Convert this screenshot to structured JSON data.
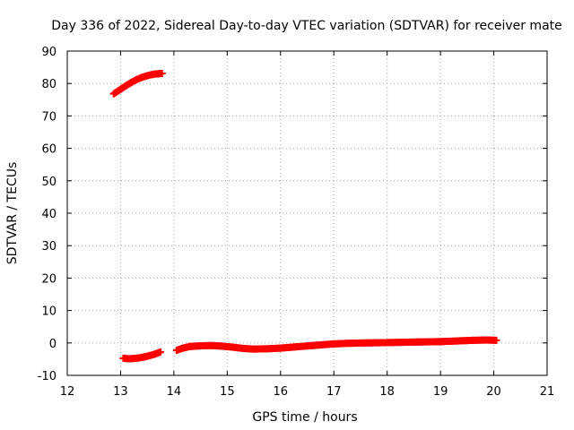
{
  "chart_data": {
    "type": "scatter",
    "title": "Day 336 of 2022, Sidereal Day-to-day VTEC variation (SDTVAR) for receiver mate",
    "xlabel": "GPS time / hours",
    "ylabel": "SDTVAR / TECUs",
    "xlim": [
      12,
      21
    ],
    "ylim": [
      -10,
      90
    ],
    "x_ticks": [
      "12",
      "13",
      "14",
      "15",
      "16",
      "17",
      "18",
      "19",
      "20",
      "21"
    ],
    "y_ticks": [
      "-10",
      "0",
      "10",
      "20",
      "30",
      "40",
      "50",
      "60",
      "70",
      "80",
      "90"
    ],
    "grid": true,
    "marker": "+",
    "series": [
      {
        "color": "#ff0000",
        "segments": [
          {
            "x": [
              12.87,
              13.0,
              13.1,
              13.2,
              13.3,
              13.4,
              13.5,
              13.6,
              13.7,
              13.78
            ],
            "y": [
              76.8,
              78.2,
              79.3,
              80.3,
              81.2,
              81.9,
              82.4,
              82.8,
              83.0,
              83.1
            ]
          },
          {
            "x": [
              13.05,
              13.15,
              13.25,
              13.35,
              13.45,
              13.55,
              13.65,
              13.75
            ],
            "y": [
              -4.7,
              -4.9,
              -4.8,
              -4.6,
              -4.3,
              -3.9,
              -3.4,
              -2.8
            ]
          },
          {
            "x": [
              14.05,
              14.15,
              14.3,
              14.5,
              14.7,
              14.9,
              15.1,
              15.3,
              15.5,
              15.75,
              16.0,
              16.3,
              16.6,
              17.0,
              17.3,
              17.6,
              18.0,
              18.3,
              18.6,
              19.0,
              19.3,
              19.6,
              19.85,
              20.05
            ],
            "y": [
              -2.3,
              -1.7,
              -1.1,
              -0.9,
              -0.8,
              -1.0,
              -1.3,
              -1.7,
              -1.9,
              -1.8,
              -1.6,
              -1.2,
              -0.8,
              -0.3,
              -0.1,
              0.0,
              0.1,
              0.2,
              0.3,
              0.4,
              0.6,
              0.8,
              0.9,
              0.8
            ]
          }
        ]
      }
    ]
  }
}
